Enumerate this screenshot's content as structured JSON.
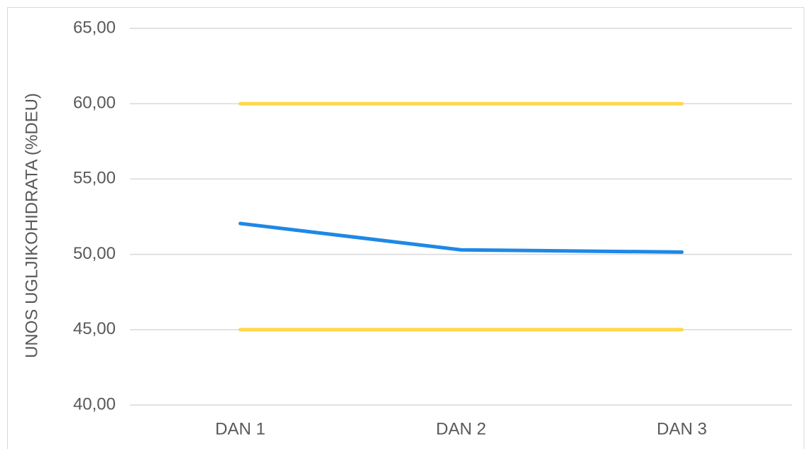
{
  "chart_data": {
    "type": "line",
    "y_label": "UNOS UGLJIKOHIDRATA (%DEU)",
    "categories": [
      "DAN 1",
      "DAN 2",
      "DAN 3"
    ],
    "series": [
      {
        "color": "#1e88e5",
        "values": [
          52.05,
          50.3,
          50.15
        ]
      },
      {
        "color": "#ffd84d",
        "values": [
          60,
          60,
          60
        ]
      },
      {
        "color": "#ffd84d",
        "values": [
          45,
          45,
          45
        ]
      }
    ],
    "ylim": [
      40,
      65
    ],
    "yticks": [
      {
        "value": 40,
        "label": "40,00"
      },
      {
        "value": 45,
        "label": "45,00"
      },
      {
        "value": 50,
        "label": "50,00"
      },
      {
        "value": 55,
        "label": "55,00"
      },
      {
        "value": 60,
        "label": "60,00"
      },
      {
        "value": 65,
        "label": "65,00"
      }
    ],
    "grid": true
  }
}
